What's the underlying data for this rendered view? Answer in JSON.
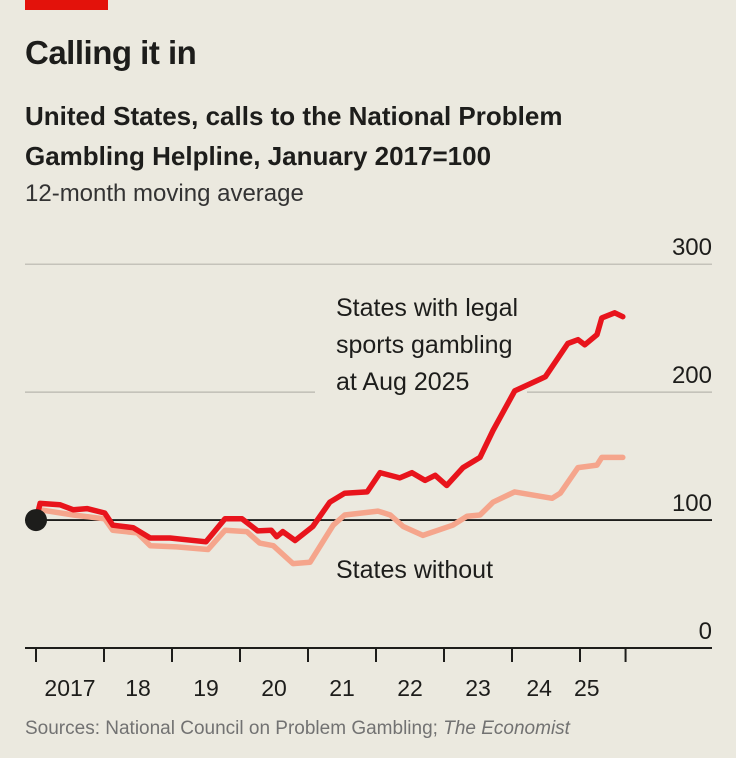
{
  "header": {
    "title": "Calling it in",
    "subtitle": "United States, calls to the National Problem Gambling Helpline, January 2017=100",
    "note": "12-month moving average"
  },
  "source": {
    "prefix": "Sources: National Council on Problem Gambling; ",
    "italic": "The Economist"
  },
  "colors": {
    "accent": "#e3120b",
    "legal": "#e8141c",
    "without": "#f5a58c",
    "background": "#ebe9df"
  },
  "chart_data": {
    "type": "line",
    "title": "Calling it in",
    "ylabel": "Index, January 2017=100",
    "ylim": [
      0,
      300
    ],
    "yticks": [
      "0",
      "100",
      "200",
      "300"
    ],
    "xlim": [
      2017,
      2025.75
    ],
    "xtick_labels": [
      "2017",
      "18",
      "19",
      "20",
      "21",
      "22",
      "23",
      "24",
      "25"
    ],
    "annotations": {
      "legal": "States with legal sports gambling at Aug 2025",
      "legal_lines": [
        "States with legal",
        "sports gambling",
        "at Aug 2025"
      ],
      "without": "States without"
    },
    "series": [
      {
        "name": "States with legal sports gambling at Aug 2025",
        "x": [
          2017.0,
          2017.06,
          2017.35,
          2017.55,
          2017.75,
          2018.01,
          2018.13,
          2018.43,
          2018.68,
          2018.97,
          2019.5,
          2019.78,
          2020.03,
          2020.26,
          2020.46,
          2020.54,
          2020.63,
          2020.81,
          2021.07,
          2021.32,
          2021.54,
          2021.87,
          2022.06,
          2022.35,
          2022.53,
          2022.72,
          2022.87,
          2023.04,
          2023.28,
          2023.53,
          2023.72,
          2024.04,
          2024.49,
          2024.82,
          2024.97,
          2025.07,
          2025.25,
          2025.32,
          2025.51,
          2025.63
        ],
        "y": [
          100,
          113,
          112,
          108,
          109,
          105.5,
          96,
          94,
          86,
          86,
          83,
          101,
          101,
          91.5,
          92,
          87,
          91,
          84,
          95,
          114,
          121,
          122,
          137,
          133,
          137,
          131,
          135,
          127,
          141,
          149,
          170,
          201,
          212,
          238,
          241,
          237,
          245,
          258,
          262,
          259
        ]
      },
      {
        "name": "States without",
        "x": [
          2017.0,
          2017.06,
          2017.55,
          2018.01,
          2018.13,
          2018.49,
          2018.68,
          2019.07,
          2019.53,
          2019.78,
          2020.1,
          2020.29,
          2020.49,
          2020.78,
          2021.03,
          2021.37,
          2021.54,
          2022.03,
          2022.21,
          2022.4,
          2022.69,
          2023.13,
          2023.34,
          2023.53,
          2023.72,
          2024.04,
          2024.59,
          2024.71,
          2024.97,
          2025.25,
          2025.32,
          2025.63
        ],
        "y": [
          100,
          108,
          104,
          101,
          92,
          90,
          80,
          79,
          77,
          92,
          91,
          82,
          80,
          66,
          67,
          96,
          104,
          107,
          104,
          95,
          88,
          96,
          103,
          104,
          114,
          122,
          117,
          121,
          141,
          143,
          149,
          149
        ]
      }
    ]
  }
}
